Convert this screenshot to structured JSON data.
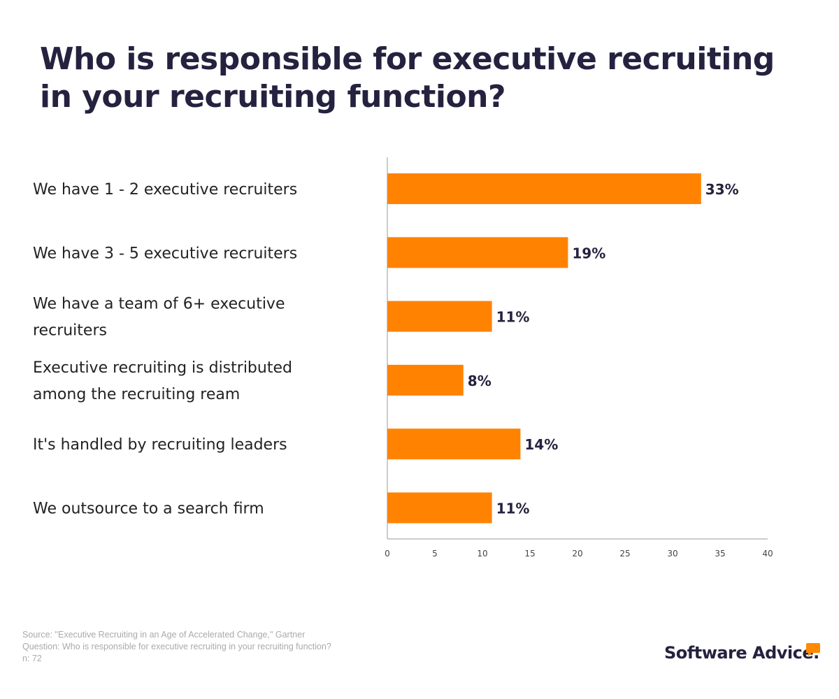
{
  "chart_data": {
    "type": "bar",
    "orientation": "horizontal",
    "title": "Who is responsible for executive recruiting in your recruiting function?",
    "categories": [
      [
        "We have 1 - 2 executive recruiters"
      ],
      [
        "We have 3 - 5 executive recruiters"
      ],
      [
        "We have a team of 6+ executive",
        "recruiters"
      ],
      [
        "Executive recruiting is distributed",
        "among the recruiting ream"
      ],
      [
        "It's handled by recruiting leaders"
      ],
      [
        "We outsource to a search firm"
      ]
    ],
    "values": [
      33,
      19,
      11,
      8,
      14,
      11
    ],
    "data_labels": [
      "33%",
      "19%",
      "11%",
      "8%",
      "14%",
      "11%"
    ],
    "xlim": [
      0,
      40
    ],
    "xticks": [
      0,
      5,
      10,
      15,
      20,
      25,
      30,
      35,
      40
    ],
    "grid": false,
    "bar_color": "#ff8300"
  },
  "footer": {
    "source": "Source: \"Executive Recruiting in an Age of Accelerated Change,\" Gartner",
    "question": "Question: Who is responsible for executive recruiting in your recruiting function?",
    "n": "n: 72"
  },
  "logo": "Software Advice."
}
